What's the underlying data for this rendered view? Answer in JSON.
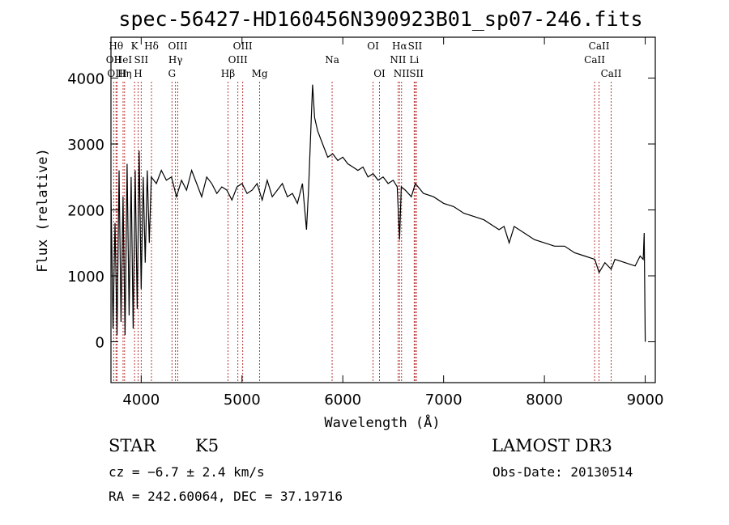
{
  "chart_data": {
    "type": "line",
    "title": "spec-56427-HD160456N390923B01_sp07-246.fits",
    "xlabel": "Wavelength (Å)",
    "ylabel": "Flux (relative)",
    "xlim": [
      3700,
      9100
    ],
    "ylim": [
      -620,
      4620
    ],
    "xticks": [
      4000,
      5000,
      6000,
      7000,
      8000,
      9000
    ],
    "yticks": [
      0,
      1000,
      2000,
      3000,
      4000
    ],
    "series": [
      {
        "x": [
          3700,
          3720,
          3740,
          3760,
          3780,
          3800,
          3820,
          3840,
          3860,
          3880,
          3900,
          3920,
          3940,
          3960,
          3980,
          4000,
          4020,
          4040,
          4060,
          4080,
          4100,
          4150,
          4200,
          4250,
          4300,
          4350,
          4400,
          4450,
          4500,
          4550,
          4600,
          4650,
          4700,
          4750,
          4800,
          4850,
          4900,
          4950,
          5000,
          5050,
          5100,
          5150,
          5200,
          5250,
          5300,
          5350,
          5400,
          5450,
          5500,
          5550,
          5600,
          5640,
          5660,
          5680,
          5700,
          5720,
          5750,
          5800,
          5850,
          5900,
          5950,
          6000,
          6050,
          6100,
          6150,
          6200,
          6250,
          6300,
          6350,
          6400,
          6450,
          6500,
          6540,
          6563,
          6580,
          6620,
          6680,
          6720,
          6800,
          6900,
          7000,
          7100,
          7200,
          7300,
          7400,
          7500,
          7550,
          7600,
          7650,
          7700,
          7800,
          7900,
          8000,
          8100,
          8200,
          8300,
          8400,
          8500,
          8542,
          8600,
          8662,
          8700,
          8800,
          8900,
          8950,
          8980,
          8990,
          9000
        ],
        "y": [
          2300,
          200,
          1800,
          100,
          2600,
          300,
          2200,
          100,
          2700,
          400,
          2500,
          200,
          2600,
          500,
          2900,
          800,
          2500,
          1200,
          2600,
          1500,
          2500,
          2400,
          2600,
          2450,
          2500,
          2200,
          2450,
          2300,
          2600,
          2400,
          2200,
          2500,
          2400,
          2250,
          2350,
          2300,
          2150,
          2350,
          2400,
          2250,
          2300,
          2400,
          2150,
          2450,
          2200,
          2300,
          2400,
          2200,
          2250,
          2100,
          2400,
          1700,
          2300,
          3100,
          3900,
          3400,
          3200,
          3000,
          2800,
          2850,
          2750,
          2800,
          2700,
          2650,
          2600,
          2650,
          2500,
          2550,
          2450,
          2500,
          2400,
          2450,
          2350,
          1550,
          2350,
          2300,
          2200,
          2400,
          2250,
          2200,
          2100,
          2050,
          1950,
          1900,
          1850,
          1750,
          1700,
          1750,
          1500,
          1750,
          1650,
          1550,
          1500,
          1450,
          1450,
          1350,
          1300,
          1250,
          1050,
          1200,
          1100,
          1250,
          1200,
          1150,
          1300,
          1250,
          1650,
          0
        ]
      }
    ],
    "lines": [
      {
        "name": "OII",
        "w": 3727,
        "row": 2
      },
      {
        "name": "Hθ",
        "w": 3750,
        "row": 1
      },
      {
        "name": "OIII",
        "w": 3760,
        "row": 3
      },
      {
        "name": "Hη",
        "w": 3835,
        "row": 3
      },
      {
        "name": "HeI",
        "w": 3820,
        "row": 2
      },
      {
        "name": "K",
        "w": 3934,
        "row": 1
      },
      {
        "name": "SII",
        "w": 4000,
        "row": 2
      },
      {
        "name": "H",
        "w": 3969,
        "row": 3
      },
      {
        "name": "Hδ",
        "w": 4102,
        "row": 1
      },
      {
        "name": "OIII",
        "w": 4363,
        "row": 1
      },
      {
        "name": "Hγ",
        "w": 4340,
        "row": 2
      },
      {
        "name": "G",
        "w": 4305,
        "row": 3
      },
      {
        "name": "Hβ",
        "w": 4861,
        "row": 3
      },
      {
        "name": "OIII",
        "w": 5007,
        "row": 1
      },
      {
        "name": "OIII",
        "w": 4959,
        "row": 2
      },
      {
        "name": "Mg",
        "w": 5175,
        "row": 3
      },
      {
        "name": "Na",
        "w": 5894,
        "row": 2
      },
      {
        "name": "OI",
        "w": 6300,
        "row": 1
      },
      {
        "name": "OI",
        "w": 6364,
        "row": 3
      },
      {
        "name": "Hα",
        "w": 6563,
        "row": 1
      },
      {
        "name": "NII",
        "w": 6548,
        "row": 2
      },
      {
        "name": "NII",
        "w": 6583,
        "row": 3
      },
      {
        "name": "SII",
        "w": 6717,
        "row": 1
      },
      {
        "name": "Li",
        "w": 6708,
        "row": 2
      },
      {
        "name": "SII",
        "w": 6731,
        "row": 3
      },
      {
        "name": "CaII",
        "w": 8542,
        "row": 1
      },
      {
        "name": "CaII",
        "w": 8498,
        "row": 2
      },
      {
        "name": "CaII",
        "w": 8662,
        "row": 3
      }
    ],
    "line_color": "#b22222"
  },
  "info": {
    "object_class": "STAR",
    "subclass": "K5",
    "survey": "LAMOST DR3",
    "cz": "cz = −6.7 ± 2.4 km/s",
    "obs_date": "Obs-Date: 20130514",
    "coords": "RA = 242.60064, DEC =  37.19716"
  }
}
